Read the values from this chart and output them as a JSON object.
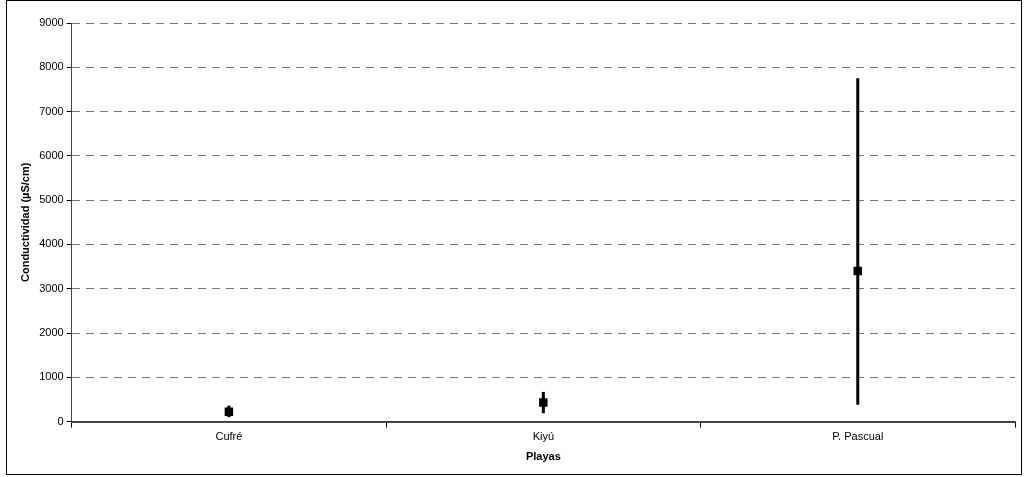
{
  "chart_data": {
    "type": "scatter",
    "xlabel": "Playas",
    "ylabel": "Conductividad (µS/cm)",
    "categories": [
      "Cufré",
      "Kiyú",
      "P. Pascual"
    ],
    "series": [
      {
        "color": "#000000",
        "values": [
          220,
          430,
          3400
        ],
        "errors": [
          [
            100,
            360
          ],
          [
            190,
            670
          ],
          [
            380,
            7750
          ]
        ]
      }
    ],
    "ylim": [
      0,
      9000
    ],
    "yticks": [
      0,
      1000,
      2000,
      3000,
      4000,
      5000,
      6000,
      7000,
      8000,
      9000
    ],
    "grid": "y",
    "line_style": "dashed",
    "marker": "square",
    "legend": false
  }
}
